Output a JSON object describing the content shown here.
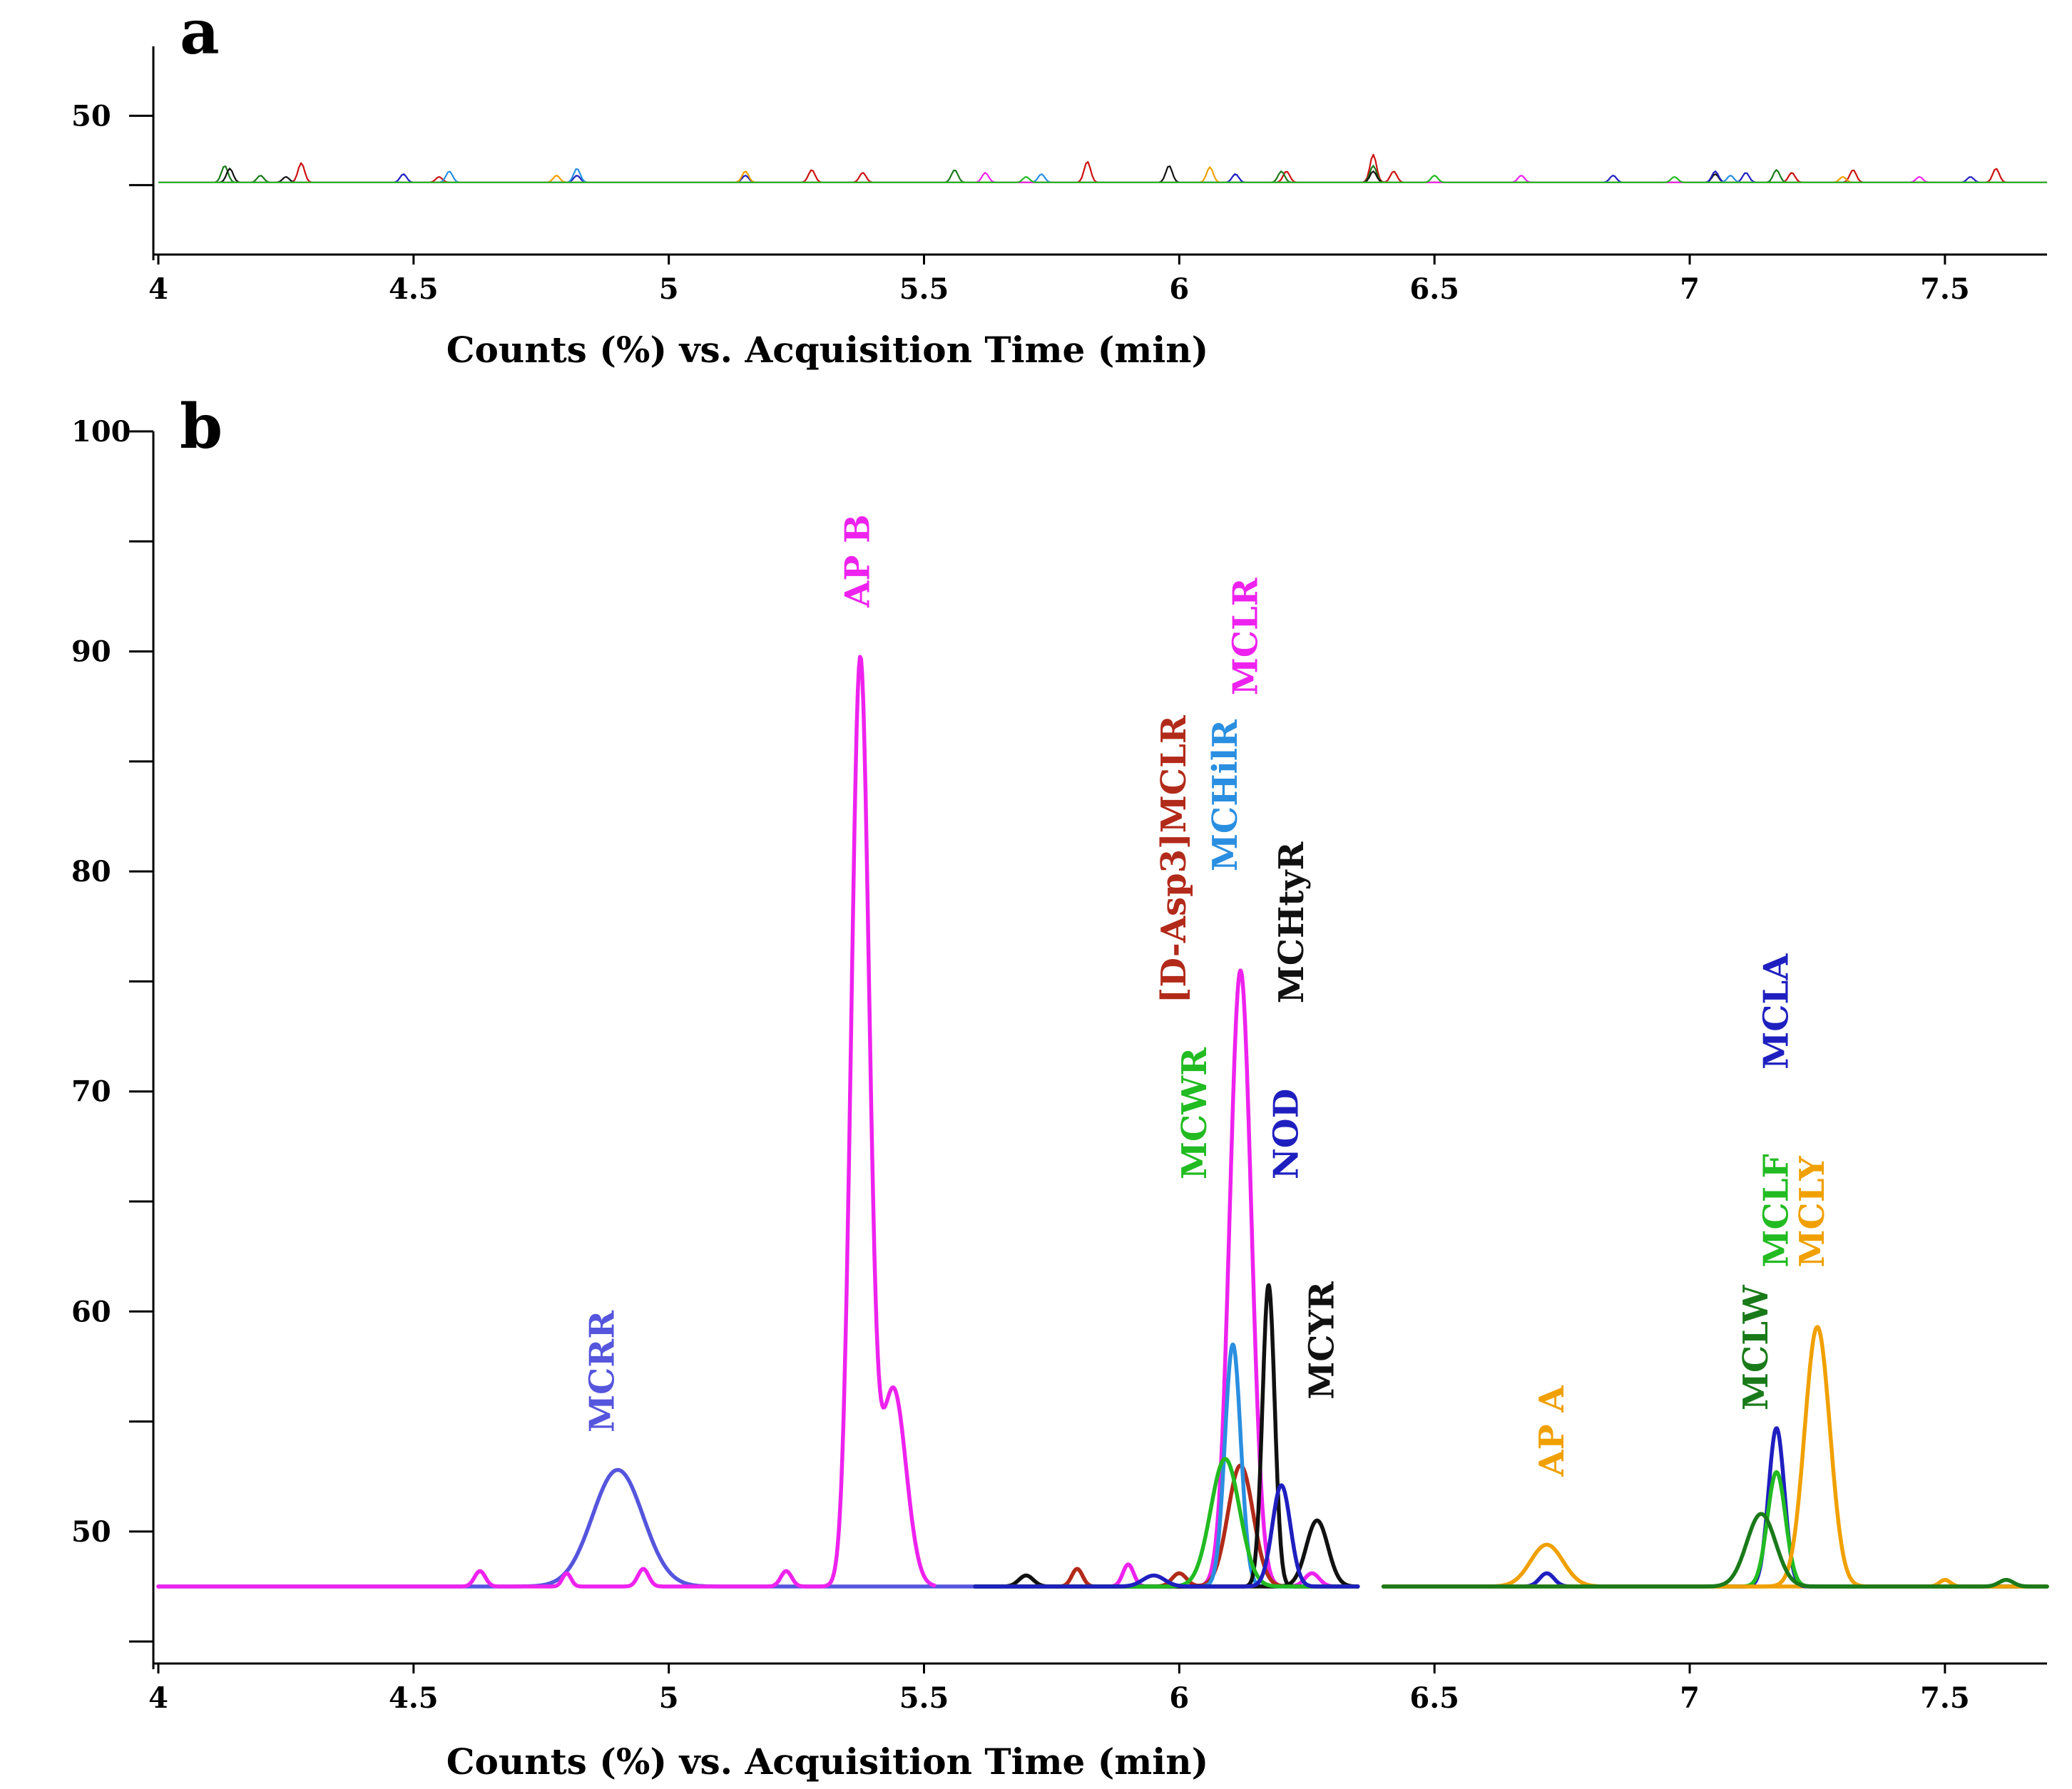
{
  "chart_data": [
    {
      "panel": "a",
      "type": "line",
      "xlabel": "Counts (%) vs. Acquisition Time (min)",
      "xlim": [
        4,
        7.7
      ],
      "ylim": [
        40,
        55
      ],
      "x_ticks": [
        4,
        4.5,
        5,
        5.5,
        6,
        6.5,
        7,
        7.5
      ],
      "x_tick_labels": [
        "4",
        "4.5",
        "5",
        "5.5",
        "6",
        "6.5",
        "7",
        "7.5"
      ],
      "y_ticks": [
        50,
        45
      ],
      "y_tick_labels": [
        "50"
      ],
      "baseline": 45.2,
      "series": [
        {
          "name": "red",
          "color": "#cc1111",
          "peaks": [
            [
              4.28,
              1.4
            ],
            [
              4.55,
              0.4
            ],
            [
              5.28,
              0.9
            ],
            [
              5.38,
              0.7
            ],
            [
              5.82,
              1.5
            ],
            [
              6.21,
              0.8
            ],
            [
              6.38,
              2.0
            ],
            [
              6.42,
              0.8
            ],
            [
              7.2,
              0.7
            ],
            [
              7.32,
              0.9
            ],
            [
              7.6,
              1.0
            ]
          ]
        },
        {
          "name": "dark-green",
          "color": "#1a7a1a",
          "peaks": [
            [
              4.13,
              1.2
            ],
            [
              4.2,
              0.5
            ],
            [
              5.56,
              0.9
            ],
            [
              6.2,
              0.8
            ],
            [
              6.38,
              1.2
            ],
            [
              7.17,
              0.9
            ]
          ]
        },
        {
          "name": "black",
          "color": "#111111",
          "peaks": [
            [
              4.14,
              1.0
            ],
            [
              4.25,
              0.4
            ],
            [
              5.98,
              1.2
            ],
            [
              6.38,
              0.8
            ],
            [
              7.05,
              0.6
            ]
          ]
        },
        {
          "name": "blue",
          "color": "#1f1fc0",
          "peaks": [
            [
              4.48,
              0.6
            ],
            [
              4.82,
              0.5
            ],
            [
              5.15,
              0.5
            ],
            [
              6.11,
              0.6
            ],
            [
              6.85,
              0.5
            ],
            [
              7.05,
              0.8
            ],
            [
              7.11,
              0.7
            ],
            [
              7.55,
              0.4
            ]
          ]
        },
        {
          "name": "sky-blue",
          "color": "#2a8fe0",
          "peaks": [
            [
              4.57,
              0.8
            ],
            [
              4.82,
              1.0
            ],
            [
              5.73,
              0.6
            ],
            [
              7.08,
              0.5
            ]
          ]
        },
        {
          "name": "orange",
          "color": "#f0a000",
          "peaks": [
            [
              4.78,
              0.5
            ],
            [
              5.15,
              0.8
            ],
            [
              6.06,
              1.1
            ],
            [
              7.3,
              0.4
            ]
          ]
        },
        {
          "name": "magenta",
          "color": "#ee22ee",
          "peaks": [
            [
              5.62,
              0.7
            ],
            [
              6.67,
              0.5
            ],
            [
              7.45,
              0.4
            ]
          ]
        },
        {
          "name": "green",
          "color": "#22bb22",
          "peaks": [
            [
              5.7,
              0.4
            ],
            [
              6.5,
              0.5
            ],
            [
              6.97,
              0.4
            ]
          ]
        }
      ]
    },
    {
      "panel": "b",
      "type": "line",
      "xlabel": "Counts (%) vs. Acquisition Time (min)",
      "xlim": [
        4,
        7.7
      ],
      "ylim": [
        44,
        100
      ],
      "x_ticks": [
        4,
        4.5,
        5,
        5.5,
        6,
        6.5,
        7,
        7.5
      ],
      "x_tick_labels": [
        "4",
        "4.5",
        "5",
        "5.5",
        "6",
        "6.5",
        "7",
        "7.5"
      ],
      "y_ticks": [
        45,
        50,
        55,
        60,
        65,
        70,
        75,
        80,
        85,
        90,
        95,
        100
      ],
      "y_tick_labels": [
        "50",
        "60",
        "70",
        "80",
        "90",
        "100"
      ],
      "baseline": 47.5,
      "series": [
        {
          "name": "MCRR",
          "color": "#5555dd",
          "x_range": [
            4.0,
            5.62
          ],
          "peaks": [
            [
              4.9,
              5.3,
              0.07
            ]
          ],
          "label": {
            "text": "MCRR",
            "x": 4.87,
            "y": 54.5
          }
        },
        {
          "name": "AP B",
          "color": "#ee22ee",
          "x_range": [
            4.0,
            5.52
          ],
          "peaks": [
            [
              5.375,
              42.0,
              0.025
            ],
            [
              5.44,
              9.0,
              0.035
            ],
            [
              4.95,
              0.8,
              0.015
            ],
            [
              4.63,
              0.7,
              0.015
            ],
            [
              5.23,
              0.7,
              0.015
            ],
            [
              4.8,
              0.6,
              0.012
            ]
          ],
          "label": {
            "text": "AP B",
            "x": 5.37,
            "y": 92.0
          }
        },
        {
          "name": "MCLR",
          "color": "#ee22ee",
          "x_range": [
            5.6,
            6.35
          ],
          "peaks": [
            [
              6.12,
              28.0,
              0.03
            ],
            [
              5.9,
              1.0,
              0.015
            ],
            [
              6.26,
              0.6,
              0.02
            ]
          ],
          "label": {
            "text": "MCLR",
            "x": 6.13,
            "y": 88.0
          }
        },
        {
          "name": "[D-Asp3]MCLR",
          "color": "#b22a1a",
          "x_range": [
            5.6,
            6.35
          ],
          "peaks": [
            [
              6.12,
              5.5,
              0.035
            ],
            [
              5.8,
              0.8,
              0.015
            ],
            [
              6.0,
              0.6,
              0.02
            ]
          ],
          "label": {
            "text": "[D-Asp3]MCLR",
            "x": 5.99,
            "y": 74.0
          }
        },
        {
          "name": "MCHilR",
          "color": "#2a8fe0",
          "x_range": [
            5.6,
            6.35
          ],
          "peaks": [
            [
              6.105,
              11.0,
              0.022
            ]
          ],
          "label": {
            "text": "MCHilR",
            "x": 6.09,
            "y": 80.0
          }
        },
        {
          "name": "MCHtyR",
          "color": "#111111",
          "x_range": [
            5.6,
            6.35
          ],
          "peaks": [
            [
              6.175,
              13.7,
              0.017
            ],
            [
              5.7,
              0.5,
              0.02
            ]
          ],
          "label": {
            "text": "MCHtyR",
            "x": 6.22,
            "y": 74.0
          }
        },
        {
          "name": "MCYR",
          "color": "#111111",
          "x_range": [
            5.6,
            6.35
          ],
          "peaks": [
            [
              6.27,
              3.0,
              0.03
            ]
          ],
          "label": {
            "text": "MCYR",
            "x": 6.28,
            "y": 56.0
          }
        },
        {
          "name": "MCWR",
          "color": "#22bb22",
          "x_range": [
            5.6,
            6.35
          ],
          "peaks": [
            [
              6.09,
              5.8,
              0.04
            ]
          ],
          "label": {
            "text": "MCWR",
            "x": 6.03,
            "y": 66.0
          }
        },
        {
          "name": "NOD",
          "color": "#1f1fc0",
          "x_range": [
            5.6,
            6.35
          ],
          "peaks": [
            [
              6.2,
              4.6,
              0.025
            ],
            [
              5.95,
              0.5,
              0.03
            ]
          ],
          "label": {
            "text": "NOD",
            "x": 6.21,
            "y": 66.0
          }
        },
        {
          "name": "AP A",
          "color": "#f0a000",
          "x_range": [
            6.4,
            7.7
          ],
          "peaks": [
            [
              6.72,
              1.9,
              0.045
            ],
            [
              7.5,
              0.3,
              0.015
            ]
          ],
          "label": {
            "text": "AP A",
            "x": 6.73,
            "y": 52.5
          }
        },
        {
          "name": "MCLA",
          "color": "#1f1fc0",
          "x_range": [
            6.4,
            7.7
          ],
          "peaks": [
            [
              7.17,
              7.2,
              0.022
            ],
            [
              6.72,
              0.6,
              0.02
            ]
          ],
          "label": {
            "text": "MCLA",
            "x": 7.17,
            "y": 71.0
          }
        },
        {
          "name": "MCLF",
          "color": "#22bb22",
          "x_range": [
            6.4,
            7.7
          ],
          "peaks": [
            [
              7.17,
              5.2,
              0.025
            ]
          ],
          "label": {
            "text": "MCLF",
            "x": 7.17,
            "y": 62.0
          }
        },
        {
          "name": "MCLY",
          "color": "#f0a000",
          "x_range": [
            6.4,
            7.7
          ],
          "peaks": [
            [
              7.25,
              11.8,
              0.035
            ]
          ],
          "label": {
            "text": "MCLY",
            "x": 7.24,
            "y": 62.0
          }
        },
        {
          "name": "MCLW",
          "color": "#1a7a1a",
          "x_range": [
            6.4,
            7.7
          ],
          "peaks": [
            [
              7.14,
              3.3,
              0.04
            ],
            [
              7.62,
              0.3,
              0.02
            ]
          ],
          "label": {
            "text": "MCLW",
            "x": 7.13,
            "y": 55.5
          }
        }
      ]
    }
  ],
  "panel_a_letter": "a",
  "panel_b_letter": "b"
}
